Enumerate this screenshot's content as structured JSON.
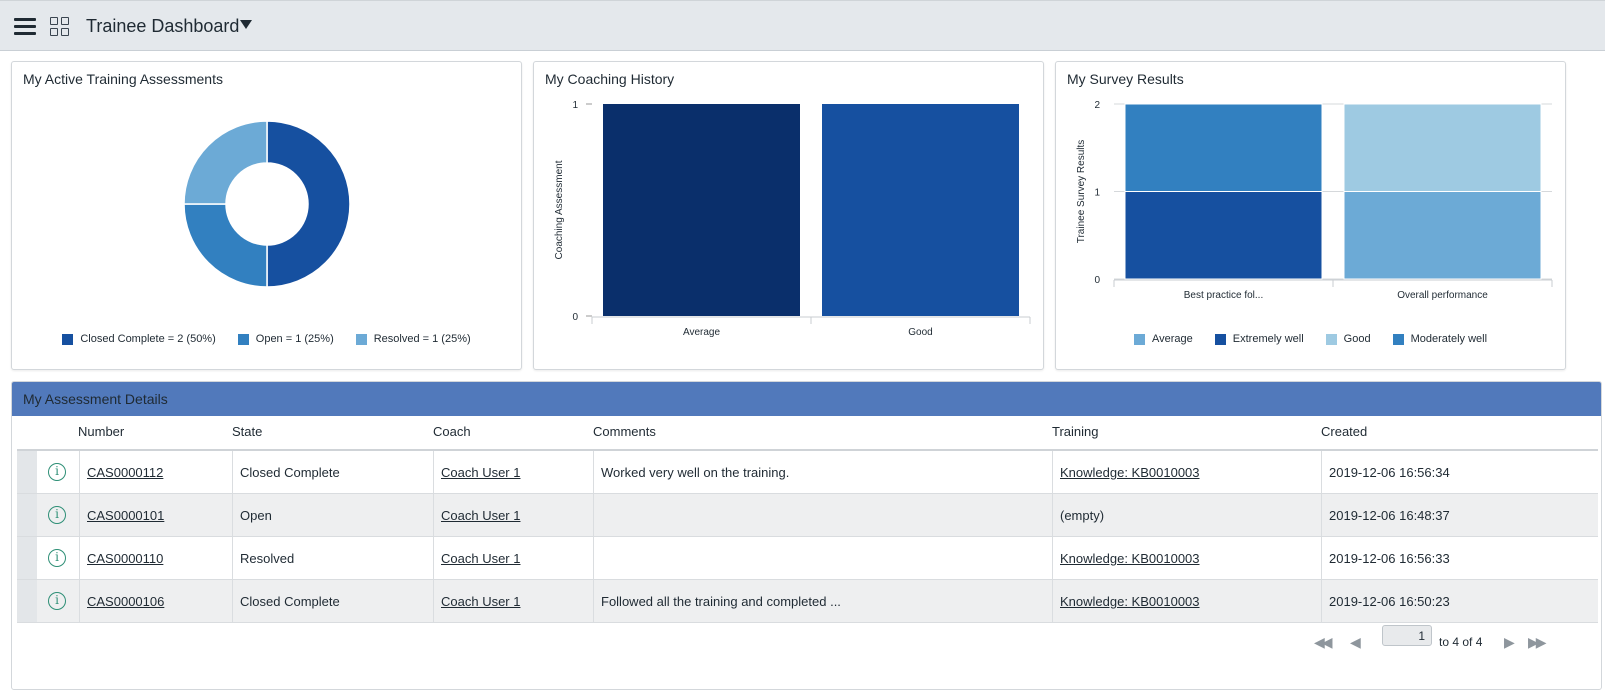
{
  "header": {
    "title": "Trainee Dashboard"
  },
  "cards": {
    "assessments": {
      "title": "My Active Training Assessments"
    },
    "coaching": {
      "title": "My Coaching History"
    },
    "survey": {
      "title": "My Survey Results"
    }
  },
  "colors": {
    "dark_navy": "#0a2f6b",
    "dark_blue": "#1650a0",
    "mid_blue": "#3280c0",
    "light_blue": "#6caad6",
    "pale_blue": "#9ecae2",
    "header_band": "#5179bb"
  },
  "chart_data": [
    {
      "type": "pie",
      "donut": true,
      "categories": [
        "Closed Complete",
        "Open",
        "Resolved"
      ],
      "values": [
        2,
        1,
        1
      ],
      "legend_labels": [
        "Closed Complete = 2 (50%)",
        "Open = 1 (25%)",
        "Resolved = 1 (25%)"
      ],
      "colors": [
        "#1650a0",
        "#3280c0",
        "#6caad6"
      ],
      "legend_position": "bottom"
    },
    {
      "type": "bar",
      "categories": [
        "Average",
        "Good"
      ],
      "values": [
        1,
        1
      ],
      "colors": [
        "#0a2f6b",
        "#1650a0"
      ],
      "ylabel": "Coaching Assessment",
      "ylim": [
        0,
        1
      ],
      "yticks": [
        "0",
        "1"
      ]
    },
    {
      "type": "bar",
      "stacked": true,
      "categories": [
        "Best practice fol...",
        "Overall performance"
      ],
      "series": [
        {
          "name": "Average",
          "values": [
            0,
            1
          ],
          "color": "#6caad6"
        },
        {
          "name": "Extremely well",
          "values": [
            1,
            0
          ],
          "color": "#1650a0"
        },
        {
          "name": "Good",
          "values": [
            0,
            1
          ],
          "color": "#9ecae2"
        },
        {
          "name": "Moderately well",
          "values": [
            1,
            0
          ],
          "color": "#3280c0"
        }
      ],
      "ylabel": "Trainee Survey Results",
      "ylim": [
        0,
        2
      ],
      "yticks": [
        "0",
        "1",
        "2"
      ],
      "legend_position": "bottom"
    }
  ],
  "details": {
    "title": "My Assessment Details",
    "columns": [
      "Number",
      "State",
      "Coach",
      "Comments",
      "Training",
      "Created"
    ],
    "rows": [
      {
        "number": "CAS0000112",
        "state": "Closed Complete",
        "coach": "Coach User 1",
        "comments": "Worked very well on the training.",
        "training": "Knowledge: KB0010003",
        "training_link": true,
        "created": "2019-12-06 16:56:34"
      },
      {
        "number": "CAS0000101",
        "state": "Open",
        "coach": "Coach User 1",
        "comments": "",
        "training": "(empty)",
        "training_link": false,
        "created": "2019-12-06 16:48:37"
      },
      {
        "number": "CAS0000110",
        "state": "Resolved",
        "coach": "Coach User 1",
        "comments": "",
        "training": "Knowledge: KB0010003",
        "training_link": true,
        "created": "2019-12-06 16:56:33"
      },
      {
        "number": "CAS0000106",
        "state": "Closed Complete",
        "coach": "Coach User 1",
        "comments": "Followed all the training and completed ...",
        "training": "Knowledge: KB0010003",
        "training_link": true,
        "created": "2019-12-06 16:50:23"
      }
    ],
    "pager": {
      "page_value": "1",
      "range_text": "to 4 of 4"
    }
  }
}
